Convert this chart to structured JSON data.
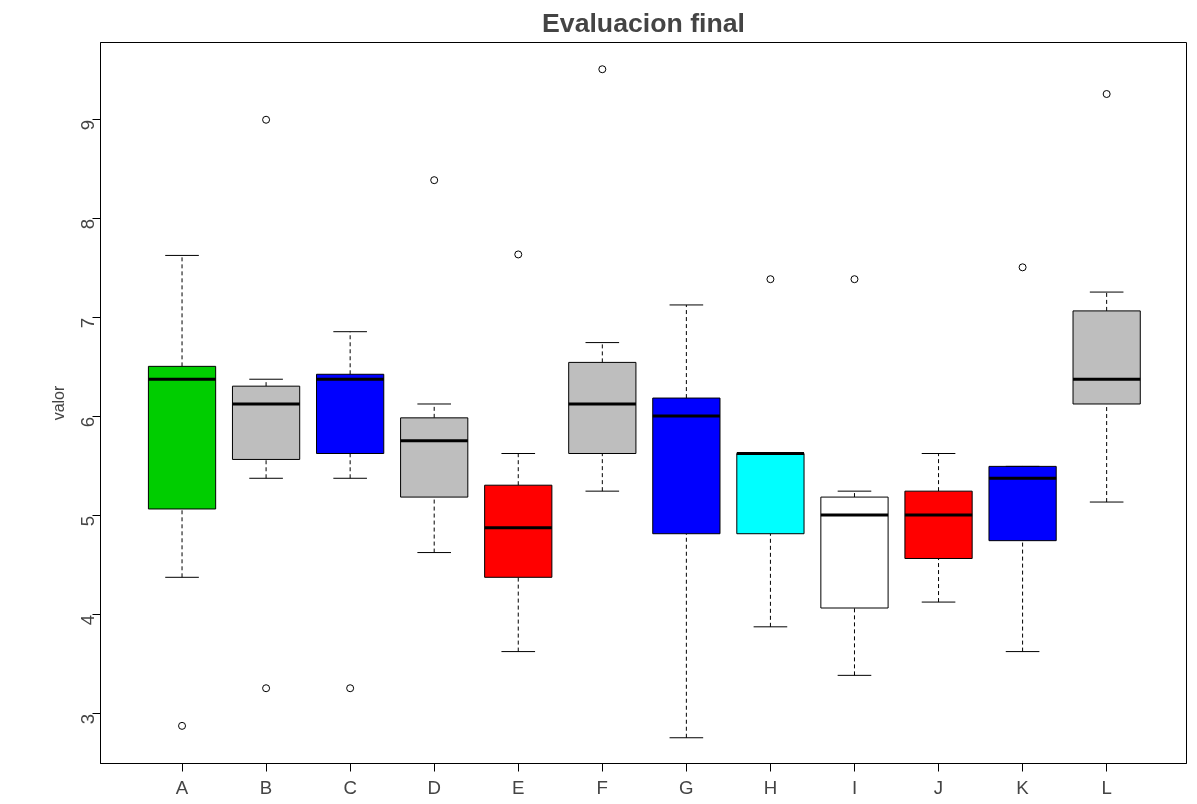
{
  "chart_data": {
    "type": "box",
    "title": "Evaluacion final",
    "ylabel": "valor",
    "categories": [
      "A",
      "B",
      "C",
      "D",
      "E",
      "F",
      "G",
      "H",
      "I",
      "J",
      "K",
      "L"
    ],
    "colors": [
      "#00cd00",
      "#bebebe",
      "#0000ff",
      "#bebebe",
      "#ff0000",
      "#bebebe",
      "#0000ff",
      "#00ffff",
      "#ffffff",
      "#ff0000",
      "#0000ff",
      "#bebebe"
    ],
    "boxes": [
      {
        "low": 4.38,
        "q1": 5.07,
        "median": 6.38,
        "q3": 6.51,
        "high": 7.63,
        "outliers": [
          2.88
        ]
      },
      {
        "low": 5.38,
        "q1": 5.57,
        "median": 6.13,
        "q3": 6.31,
        "high": 6.38,
        "outliers": [
          9.0,
          3.26
        ]
      },
      {
        "low": 5.38,
        "q1": 5.63,
        "median": 6.38,
        "q3": 6.43,
        "high": 6.86,
        "outliers": [
          3.26
        ]
      },
      {
        "low": 4.63,
        "q1": 5.19,
        "median": 5.76,
        "q3": 5.99,
        "high": 6.13,
        "outliers": [
          8.39
        ]
      },
      {
        "low": 3.63,
        "q1": 4.38,
        "median": 4.88,
        "q3": 5.31,
        "high": 5.63,
        "outliers": [
          7.64
        ]
      },
      {
        "low": 5.25,
        "q1": 5.63,
        "median": 6.13,
        "q3": 6.55,
        "high": 6.75,
        "outliers": [
          9.51
        ]
      },
      {
        "low": 2.76,
        "q1": 4.82,
        "median": 6.01,
        "q3": 6.19,
        "high": 7.13
      },
      {
        "low": 3.88,
        "q1": 4.82,
        "median": 5.63,
        "q3": 5.63,
        "high": 5.63,
        "outliers": [
          7.39
        ]
      },
      {
        "low": 3.39,
        "q1": 4.07,
        "median": 5.01,
        "q3": 5.19,
        "high": 5.25,
        "outliers": [
          7.39
        ]
      },
      {
        "low": 4.13,
        "q1": 4.57,
        "median": 5.01,
        "q3": 5.25,
        "high": 5.63
      },
      {
        "low": 3.63,
        "q1": 4.75,
        "median": 5.38,
        "q3": 5.5,
        "high": 5.5,
        "outliers": [
          7.51
        ]
      },
      {
        "low": 5.14,
        "q1": 6.13,
        "median": 6.38,
        "q3": 7.07,
        "high": 7.26,
        "outliers": [
          9.26
        ]
      }
    ],
    "ylim": [
      2.5,
      9.78
    ],
    "yticks": [
      3,
      4,
      5,
      6,
      7,
      8,
      9
    ]
  }
}
